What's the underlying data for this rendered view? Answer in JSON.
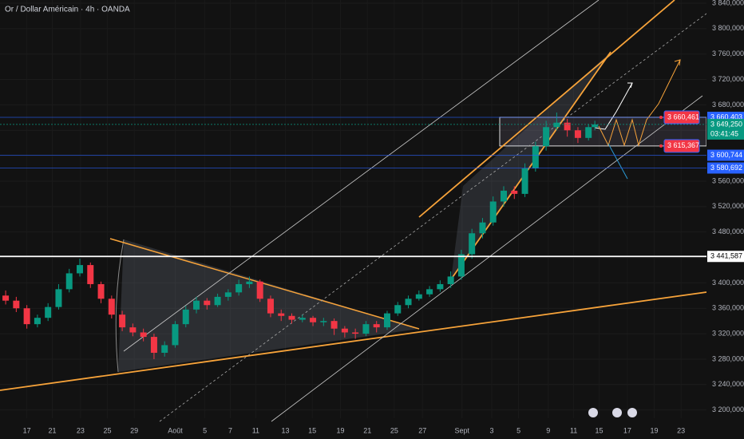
{
  "chart_data": {
    "type": "candlestick",
    "title": "Or / Dollar Américain · 4h · OANDA",
    "up_color": "#089981",
    "down_color": "#f23645",
    "x": [
      0.4,
      1.15,
      1.9,
      2.65,
      3.4,
      4.15,
      4.9,
      5.65,
      6.4,
      7.15,
      7.9,
      8.65,
      9.4,
      10.15,
      10.9,
      11.65,
      12.4,
      13.15,
      13.9,
      14.65,
      15.4,
      16.15,
      16.9,
      17.65,
      18.4,
      19.15,
      19.9,
      20.65,
      21.4,
      22.15,
      22.9,
      23.65,
      24.4,
      25.15,
      25.9,
      26.65,
      27.4,
      28.15,
      28.9,
      29.65,
      30.4,
      31.15,
      31.9,
      32.65,
      33.4,
      34.15,
      34.9,
      35.65,
      36.4,
      37.15,
      37.9,
      38.65,
      39.4,
      40.15,
      40.9,
      41.65,
      42.1
    ],
    "open": [
      3380,
      3372,
      3360,
      3335,
      3345,
      3362,
      3390,
      3415,
      3428,
      3398,
      3375,
      3350,
      3330,
      3322,
      3315,
      3290,
      3302,
      3335,
      3358,
      3372,
      3365,
      3378,
      3385,
      3398,
      3402,
      3375,
      3352,
      3348,
      3342,
      3345,
      3338,
      3340,
      3328,
      3322,
      3320,
      3335,
      3330,
      3352,
      3365,
      3375,
      3382,
      3390,
      3398,
      3410,
      3445,
      3478,
      3495,
      3528,
      3545,
      3540,
      3580,
      3615,
      3645,
      3652,
      3640,
      3628,
      3645
    ],
    "high": [
      3388,
      3378,
      3365,
      3350,
      3368,
      3398,
      3422,
      3438,
      3432,
      3402,
      3380,
      3356,
      3336,
      3328,
      3320,
      3308,
      3340,
      3364,
      3378,
      3376,
      3383,
      3390,
      3405,
      3410,
      3405,
      3380,
      3358,
      3352,
      3350,
      3348,
      3345,
      3344,
      3332,
      3328,
      3340,
      3340,
      3356,
      3370,
      3380,
      3388,
      3395,
      3404,
      3418,
      3452,
      3485,
      3502,
      3536,
      3552,
      3552,
      3588,
      3622,
      3655,
      3668,
      3658,
      3645,
      3650,
      3655
    ],
    "low": [
      3366,
      3354,
      3328,
      3330,
      3340,
      3358,
      3385,
      3410,
      3392,
      3368,
      3344,
      3324,
      3316,
      3308,
      3280,
      3284,
      3298,
      3330,
      3352,
      3358,
      3362,
      3372,
      3380,
      3392,
      3370,
      3346,
      3340,
      3336,
      3338,
      3332,
      3332,
      3318,
      3314,
      3312,
      3316,
      3322,
      3326,
      3348,
      3360,
      3372,
      3378,
      3386,
      3392,
      3405,
      3438,
      3470,
      3490,
      3520,
      3532,
      3535,
      3575,
      3608,
      3640,
      3630,
      3620,
      3624,
      3640
    ],
    "close": [
      3372,
      3360,
      3335,
      3345,
      3362,
      3390,
      3415,
      3428,
      3398,
      3375,
      3350,
      3330,
      3322,
      3315,
      3290,
      3302,
      3335,
      3358,
      3372,
      3365,
      3378,
      3385,
      3398,
      3402,
      3375,
      3352,
      3348,
      3342,
      3345,
      3338,
      3340,
      3328,
      3322,
      3320,
      3335,
      3330,
      3352,
      3365,
      3375,
      3382,
      3390,
      3398,
      3410,
      3445,
      3478,
      3495,
      3528,
      3545,
      3540,
      3580,
      3615,
      3645,
      3652,
      3640,
      3628,
      3645,
      3649.25
    ],
    "xlim": [
      0,
      50
    ],
    "xticks": [
      {
        "value": 1.9,
        "label": "17"
      },
      {
        "value": 3.7,
        "label": "21"
      },
      {
        "value": 5.7,
        "label": "23"
      },
      {
        "value": 7.6,
        "label": "25"
      },
      {
        "value": 9.5,
        "label": "29"
      },
      {
        "value": 12.4,
        "label": "Août"
      },
      {
        "value": 14.5,
        "label": "5"
      },
      {
        "value": 16.3,
        "label": "7"
      },
      {
        "value": 18.1,
        "label": "11"
      },
      {
        "value": 20.2,
        "label": "13"
      },
      {
        "value": 22.1,
        "label": "15"
      },
      {
        "value": 24.1,
        "label": "19"
      },
      {
        "value": 26,
        "label": "21"
      },
      {
        "value": 27.9,
        "label": "25"
      },
      {
        "value": 29.9,
        "label": "27"
      },
      {
        "value": 32.7,
        "label": "Sept"
      },
      {
        "value": 34.8,
        "label": "3"
      },
      {
        "value": 36.7,
        "label": "5"
      },
      {
        "value": 38.8,
        "label": "9"
      },
      {
        "value": 40.6,
        "label": "11"
      },
      {
        "value": 42.4,
        "label": "15"
      },
      {
        "value": 44.4,
        "label": "17"
      },
      {
        "value": 46.3,
        "label": "19"
      },
      {
        "value": 48.2,
        "label": "23"
      }
    ],
    "ylim": [
      3187,
      3845
    ],
    "yticks": [
      {
        "value": 3200,
        "label": "3 200,000"
      },
      {
        "value": 3240,
        "label": "3 240,000"
      },
      {
        "value": 3280,
        "label": "3 280,000"
      },
      {
        "value": 3320,
        "label": "3 320,000"
      },
      {
        "value": 3360,
        "label": "3 360,000"
      },
      {
        "value": 3400,
        "label": "3 400,000"
      },
      {
        "value": 3440,
        "label": "3 440,000"
      },
      {
        "value": 3480,
        "label": "3 480,000"
      },
      {
        "value": 3520,
        "label": "3 520,000"
      },
      {
        "value": 3560,
        "label": "3 560,000"
      },
      {
        "value": 3600,
        "label": "3 600,000"
      },
      {
        "value": 3640,
        "label": "3 640,000"
      },
      {
        "value": 3680,
        "label": "3 680,000"
      },
      {
        "value": 3720,
        "label": "3 720,000"
      },
      {
        "value": 3760,
        "label": "3 760,000"
      },
      {
        "value": 3800,
        "label": "3 800,000"
      },
      {
        "value": 3840,
        "label": "3 840,000"
      }
    ],
    "levels": [
      {
        "value": 3660.403,
        "label": "3 660,403",
        "color": "#2962ff"
      },
      {
        "value": 3600.744,
        "label": "3 600,744",
        "color": "#2962ff"
      },
      {
        "value": 3580.692,
        "label": "3 580,692",
        "color": "#2962ff"
      },
      {
        "value": 3441.587,
        "label": "3 441,587",
        "color": "#ffffff"
      }
    ],
    "current_price": {
      "value": 3649.25,
      "label": "3 649,250",
      "countdown": "03:41:45",
      "color": "#089981"
    },
    "zone": [
      {
        "value": 3660.461,
        "label": "3 660,461"
      },
      {
        "value": 3615.367,
        "label": "3 615,367"
      }
    ],
    "zone_color": "#f23645"
  }
}
